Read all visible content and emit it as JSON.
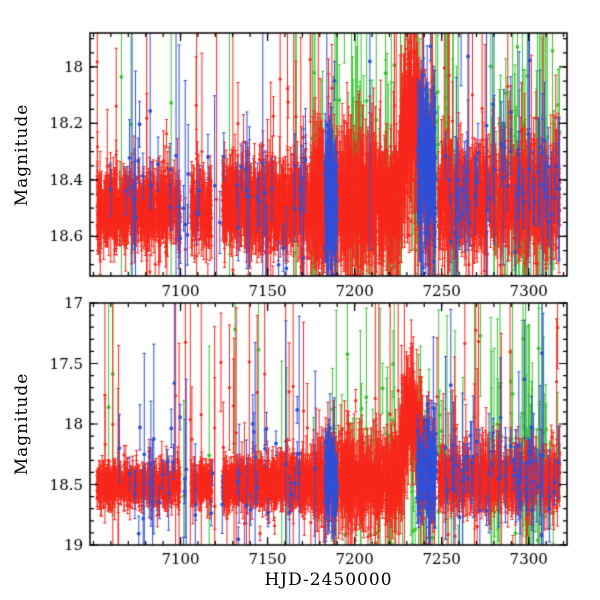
{
  "figure": {
    "background": "#ffffff",
    "axis_color": "#000000",
    "tick_label_font_px": 15
  },
  "chart_data": [
    {
      "type": "scatter",
      "panel": "top",
      "title": "",
      "xlabel": "",
      "ylabel": "Magnitude",
      "xlim": [
        7048,
        7322
      ],
      "y_top": 17.88,
      "y_bottom": 18.74,
      "xticks": [
        7100,
        7150,
        7200,
        7250,
        7300
      ],
      "yticks": [
        18,
        18.2,
        18.4,
        18.6
      ],
      "x_minor_step": 10,
      "y_minor_step": 0.05,
      "grid": false,
      "legend": "none",
      "notable_features": [
        "dense red photometry at baseline magnitude ~18.5 with error bars",
        "brightening event peaking near HJD 7233 reaching ~18.2",
        "dense blue point columns near HJD 7185-7190 and 7236-7247",
        "green points with large error bars between HJD ~7180-7260 and ~7280-7318",
        "seasonal gaps near HJD 7100-7106 and 7118-7124"
      ],
      "seed": 7,
      "series": [
        {
          "name": "green",
          "color": "#3cc435",
          "marker_px": 1.9,
          "segments": [
            {
              "x0": 7176,
              "x1": 7260,
              "n": 100,
              "base": 18.38,
              "sigma": 0.17,
              "err": [
                0.12,
                1.0
              ]
            },
            {
              "x0": 7278,
              "x1": 7318,
              "n": 65,
              "base": 18.4,
              "sigma": 0.16,
              "err": [
                0.12,
                1.0
              ]
            }
          ],
          "outliers": {
            "n": 18,
            "mag_lo": 17.9,
            "mag_hi": 18.72,
            "err": [
              0.3,
              1.3
            ]
          }
        },
        {
          "name": "red",
          "color": "#f8281c",
          "marker_px": 1.6,
          "segments": [
            {
              "x0": 7052,
              "x1": 7100,
              "n": 520,
              "base": 18.5,
              "sigma": 0.045,
              "err": [
                0.05,
                0.14
              ]
            },
            {
              "x0": 7106,
              "x1": 7118,
              "n": 110,
              "base": 18.5,
              "sigma": 0.05,
              "err": [
                0.05,
                0.14
              ]
            },
            {
              "x0": 7124,
              "x1": 7176,
              "n": 640,
              "base": 18.49,
              "sigma": 0.055,
              "err": [
                0.05,
                0.16
              ]
            },
            {
              "x0": 7176,
              "x1": 7226,
              "n": 620,
              "base": 18.47,
              "sigma": 0.075,
              "err": [
                0.06,
                0.3
              ]
            },
            {
              "x0": 7226,
              "x1": 7246,
              "n": 380,
              "base": 18.43,
              "sigma": 0.08,
              "err": [
                0.06,
                0.35
              ],
              "flare": {
                "t0": 7233,
                "w": 4.5,
                "amp": 0.26
              }
            },
            {
              "x0": 7248,
              "x1": 7318,
              "n": 720,
              "base": 18.46,
              "sigma": 0.065,
              "err": [
                0.05,
                0.22
              ]
            }
          ],
          "outliers": {
            "n": 55,
            "mag_lo": 17.92,
            "mag_hi": 18.73,
            "err": [
              0.15,
              1.1
            ]
          }
        },
        {
          "name": "blue",
          "color": "#3050d8",
          "marker_px": 1.9,
          "segments": [
            {
              "x0": 7058,
              "x1": 7178,
              "n": 45,
              "base": 18.45,
              "sigma": 0.13,
              "err": [
                0.08,
                0.5
              ]
            },
            {
              "x0": 7183,
              "x1": 7190,
              "n": 85,
              "base": 18.48,
              "sigma": 0.1,
              "err": [
                0.05,
                0.35
              ]
            },
            {
              "x0": 7236,
              "x1": 7247,
              "n": 125,
              "base": 18.38,
              "sigma": 0.1,
              "err": [
                0.05,
                0.35
              ]
            },
            {
              "x0": 7252,
              "x1": 7318,
              "n": 55,
              "base": 18.42,
              "sigma": 0.11,
              "err": [
                0.08,
                0.5
              ]
            }
          ],
          "outliers": {
            "n": 10,
            "mag_lo": 17.95,
            "mag_hi": 18.7,
            "err": [
              0.2,
              0.8
            ]
          }
        }
      ]
    },
    {
      "type": "scatter",
      "panel": "bottom",
      "title": "",
      "xlabel": "HJD-2450000",
      "ylabel": "Magnitude",
      "xlim": [
        7048,
        7322
      ],
      "y_top": 17.0,
      "y_bottom": 19.0,
      "xticks": [
        7100,
        7150,
        7200,
        7250,
        7300
      ],
      "yticks": [
        17,
        17.5,
        18,
        18.5,
        19
      ],
      "x_minor_step": 10,
      "y_minor_step": 0.1,
      "grid": false,
      "legend": "none",
      "notable_features": [
        "baseline magnitude ~18.5 with outliers spanning 17.0-19.0",
        "flare near HJD 7233 reaching ~17.8",
        "isolated bright blue points near magnitude 17.3-17.6 around HJD 7085 and 7125",
        "green points with very large error bars after HJD ~7180"
      ],
      "seed": 99,
      "series": [
        {
          "name": "green",
          "color": "#3cc435",
          "marker_px": 1.9,
          "segments": [
            {
              "x0": 7176,
              "x1": 7260,
              "n": 100,
              "base": 18.35,
              "sigma": 0.25,
              "err": [
                0.2,
                1.4
              ]
            },
            {
              "x0": 7278,
              "x1": 7318,
              "n": 65,
              "base": 18.38,
              "sigma": 0.22,
              "err": [
                0.2,
                1.4
              ]
            }
          ],
          "outliers": {
            "n": 20,
            "mag_lo": 17.2,
            "mag_hi": 18.95,
            "err": [
              0.4,
              1.8
            ]
          }
        },
        {
          "name": "red",
          "color": "#f8281c",
          "marker_px": 1.6,
          "segments": [
            {
              "x0": 7052,
              "x1": 7100,
              "n": 520,
              "base": 18.5,
              "sigma": 0.05,
              "err": [
                0.06,
                0.2
              ]
            },
            {
              "x0": 7106,
              "x1": 7118,
              "n": 110,
              "base": 18.5,
              "sigma": 0.055,
              "err": [
                0.06,
                0.2
              ]
            },
            {
              "x0": 7124,
              "x1": 7176,
              "n": 640,
              "base": 18.49,
              "sigma": 0.06,
              "err": [
                0.06,
                0.25
              ]
            },
            {
              "x0": 7176,
              "x1": 7226,
              "n": 620,
              "base": 18.47,
              "sigma": 0.09,
              "err": [
                0.07,
                0.5
              ]
            },
            {
              "x0": 7226,
              "x1": 7246,
              "n": 380,
              "base": 18.42,
              "sigma": 0.1,
              "err": [
                0.07,
                0.6
              ],
              "flare": {
                "t0": 7233,
                "w": 4.0,
                "amp": 0.55
              }
            },
            {
              "x0": 7248,
              "x1": 7318,
              "n": 720,
              "base": 18.46,
              "sigma": 0.075,
              "err": [
                0.06,
                0.35
              ]
            }
          ],
          "outliers": {
            "n": 60,
            "mag_lo": 17.15,
            "mag_hi": 18.95,
            "err": [
              0.3,
              1.6
            ]
          }
        },
        {
          "name": "blue",
          "color": "#3050d8",
          "marker_px": 1.9,
          "segments": [
            {
              "x0": 7058,
              "x1": 7178,
              "n": 45,
              "base": 18.45,
              "sigma": 0.2,
              "err": [
                0.1,
                0.8
              ]
            },
            {
              "x0": 7183,
              "x1": 7190,
              "n": 85,
              "base": 18.48,
              "sigma": 0.12,
              "err": [
                0.06,
                0.5
              ]
            },
            {
              "x0": 7236,
              "x1": 7247,
              "n": 125,
              "base": 18.4,
              "sigma": 0.12,
              "err": [
                0.06,
                0.5
              ]
            },
            {
              "x0": 7252,
              "x1": 7318,
              "n": 55,
              "base": 18.42,
              "sigma": 0.15,
              "err": [
                0.1,
                0.8
              ]
            }
          ],
          "outliers": {
            "n": 14,
            "mag_lo": 17.2,
            "mag_hi": 18.9,
            "err": [
              0.3,
              1.2
            ]
          }
        }
      ]
    }
  ]
}
